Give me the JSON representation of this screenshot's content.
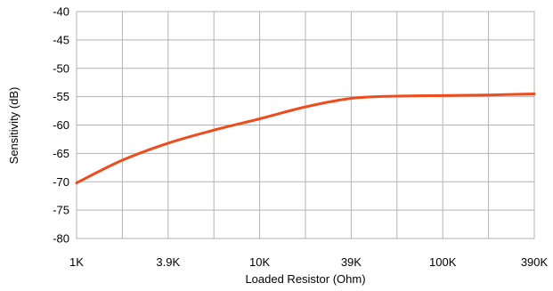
{
  "chart_data": {
    "type": "line",
    "xlabel": "Loaded Resistor (Ohm)",
    "ylabel": "Sensitivity (dB)",
    "ylim": [
      -80,
      -40
    ],
    "y_ticks": [
      "-40",
      "-45",
      "-50",
      "-55",
      "-60",
      "-65",
      "-70",
      "-75",
      "-80"
    ],
    "x_ticks": [
      "1K",
      "3.9K",
      "10K",
      "39K",
      "100K",
      "390K"
    ],
    "x_categories": [
      "1K",
      "2K",
      "3.9K",
      "6K",
      "10K",
      "20K",
      "39K",
      "60K",
      "100K",
      "200K",
      "390K"
    ],
    "grid": true,
    "legend": "none",
    "series": [
      {
        "color": "#ef4c1d",
        "x": [
          "1K",
          "2K",
          "3.9K",
          "6K",
          "10K",
          "20K",
          "39K",
          "60K",
          "100K",
          "200K",
          "390K"
        ],
        "values": [
          -70.2,
          -66.2,
          -63.2,
          -60.9,
          -58.9,
          -56.8,
          -55.3,
          -54.9,
          -54.8,
          -54.7,
          -54.5
        ]
      }
    ]
  }
}
